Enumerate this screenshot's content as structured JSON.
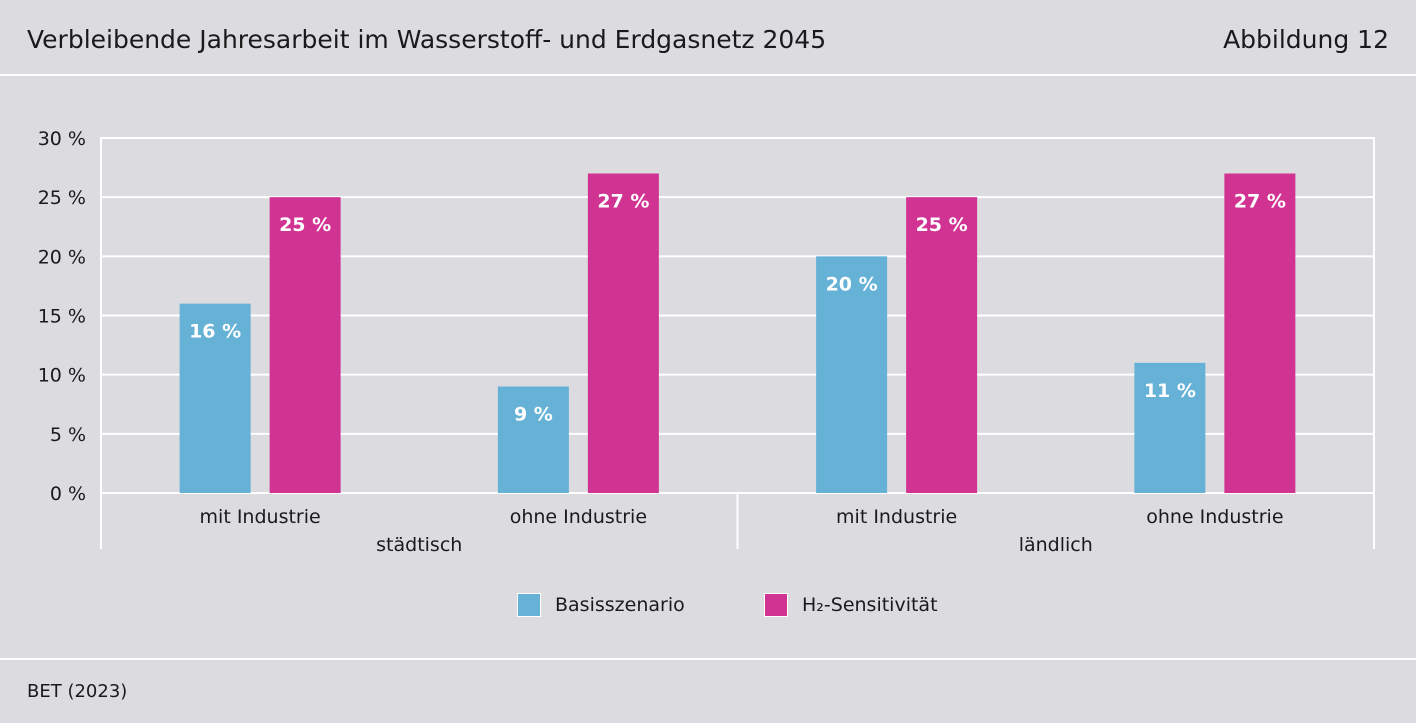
{
  "header": {
    "title": "Verbleibende Jahresarbeit im Wasserstoff- und Erdgasnetz 2045",
    "figure_label": "Abbildung 12"
  },
  "footer": {
    "source": "BET (2023)"
  },
  "colors": {
    "background": "#dcdbe0",
    "grid": "#ffffff",
    "basis": "#66b1d6",
    "h2": "#d13393"
  },
  "legend": {
    "items": [
      {
        "label": "Basisszenario",
        "color": "#66b1d6"
      },
      {
        "label": "H₂-Sensitivität",
        "color": "#d13393"
      }
    ]
  },
  "chart_data": {
    "type": "bar",
    "groups": [
      {
        "label": "städtisch",
        "categories": [
          "mit Industrie",
          "ohne Industrie"
        ]
      },
      {
        "label": "ländlich",
        "categories": [
          "mit Industrie",
          "ohne Industrie"
        ]
      }
    ],
    "categories": [
      "mit Industrie",
      "ohne Industrie",
      "mit Industrie",
      "ohne Industrie"
    ],
    "series": [
      {
        "name": "Basisszenario",
        "values": [
          16,
          9,
          20,
          11
        ],
        "labels": [
          "16 %",
          "9 %",
          "20 %",
          "11 %"
        ]
      },
      {
        "name": "H₂-Sensitivität",
        "values": [
          25,
          27,
          25,
          27
        ],
        "labels": [
          "25 %",
          "27 %",
          "25 %",
          "27 %"
        ]
      }
    ],
    "yticks": [
      "0 %",
      "5 %",
      "10 %",
      "15 %",
      "20 %",
      "25 %",
      "30 %"
    ],
    "ylim": [
      0,
      30
    ],
    "ystep": 5,
    "grid": true,
    "legend_position": "bottom-center"
  }
}
